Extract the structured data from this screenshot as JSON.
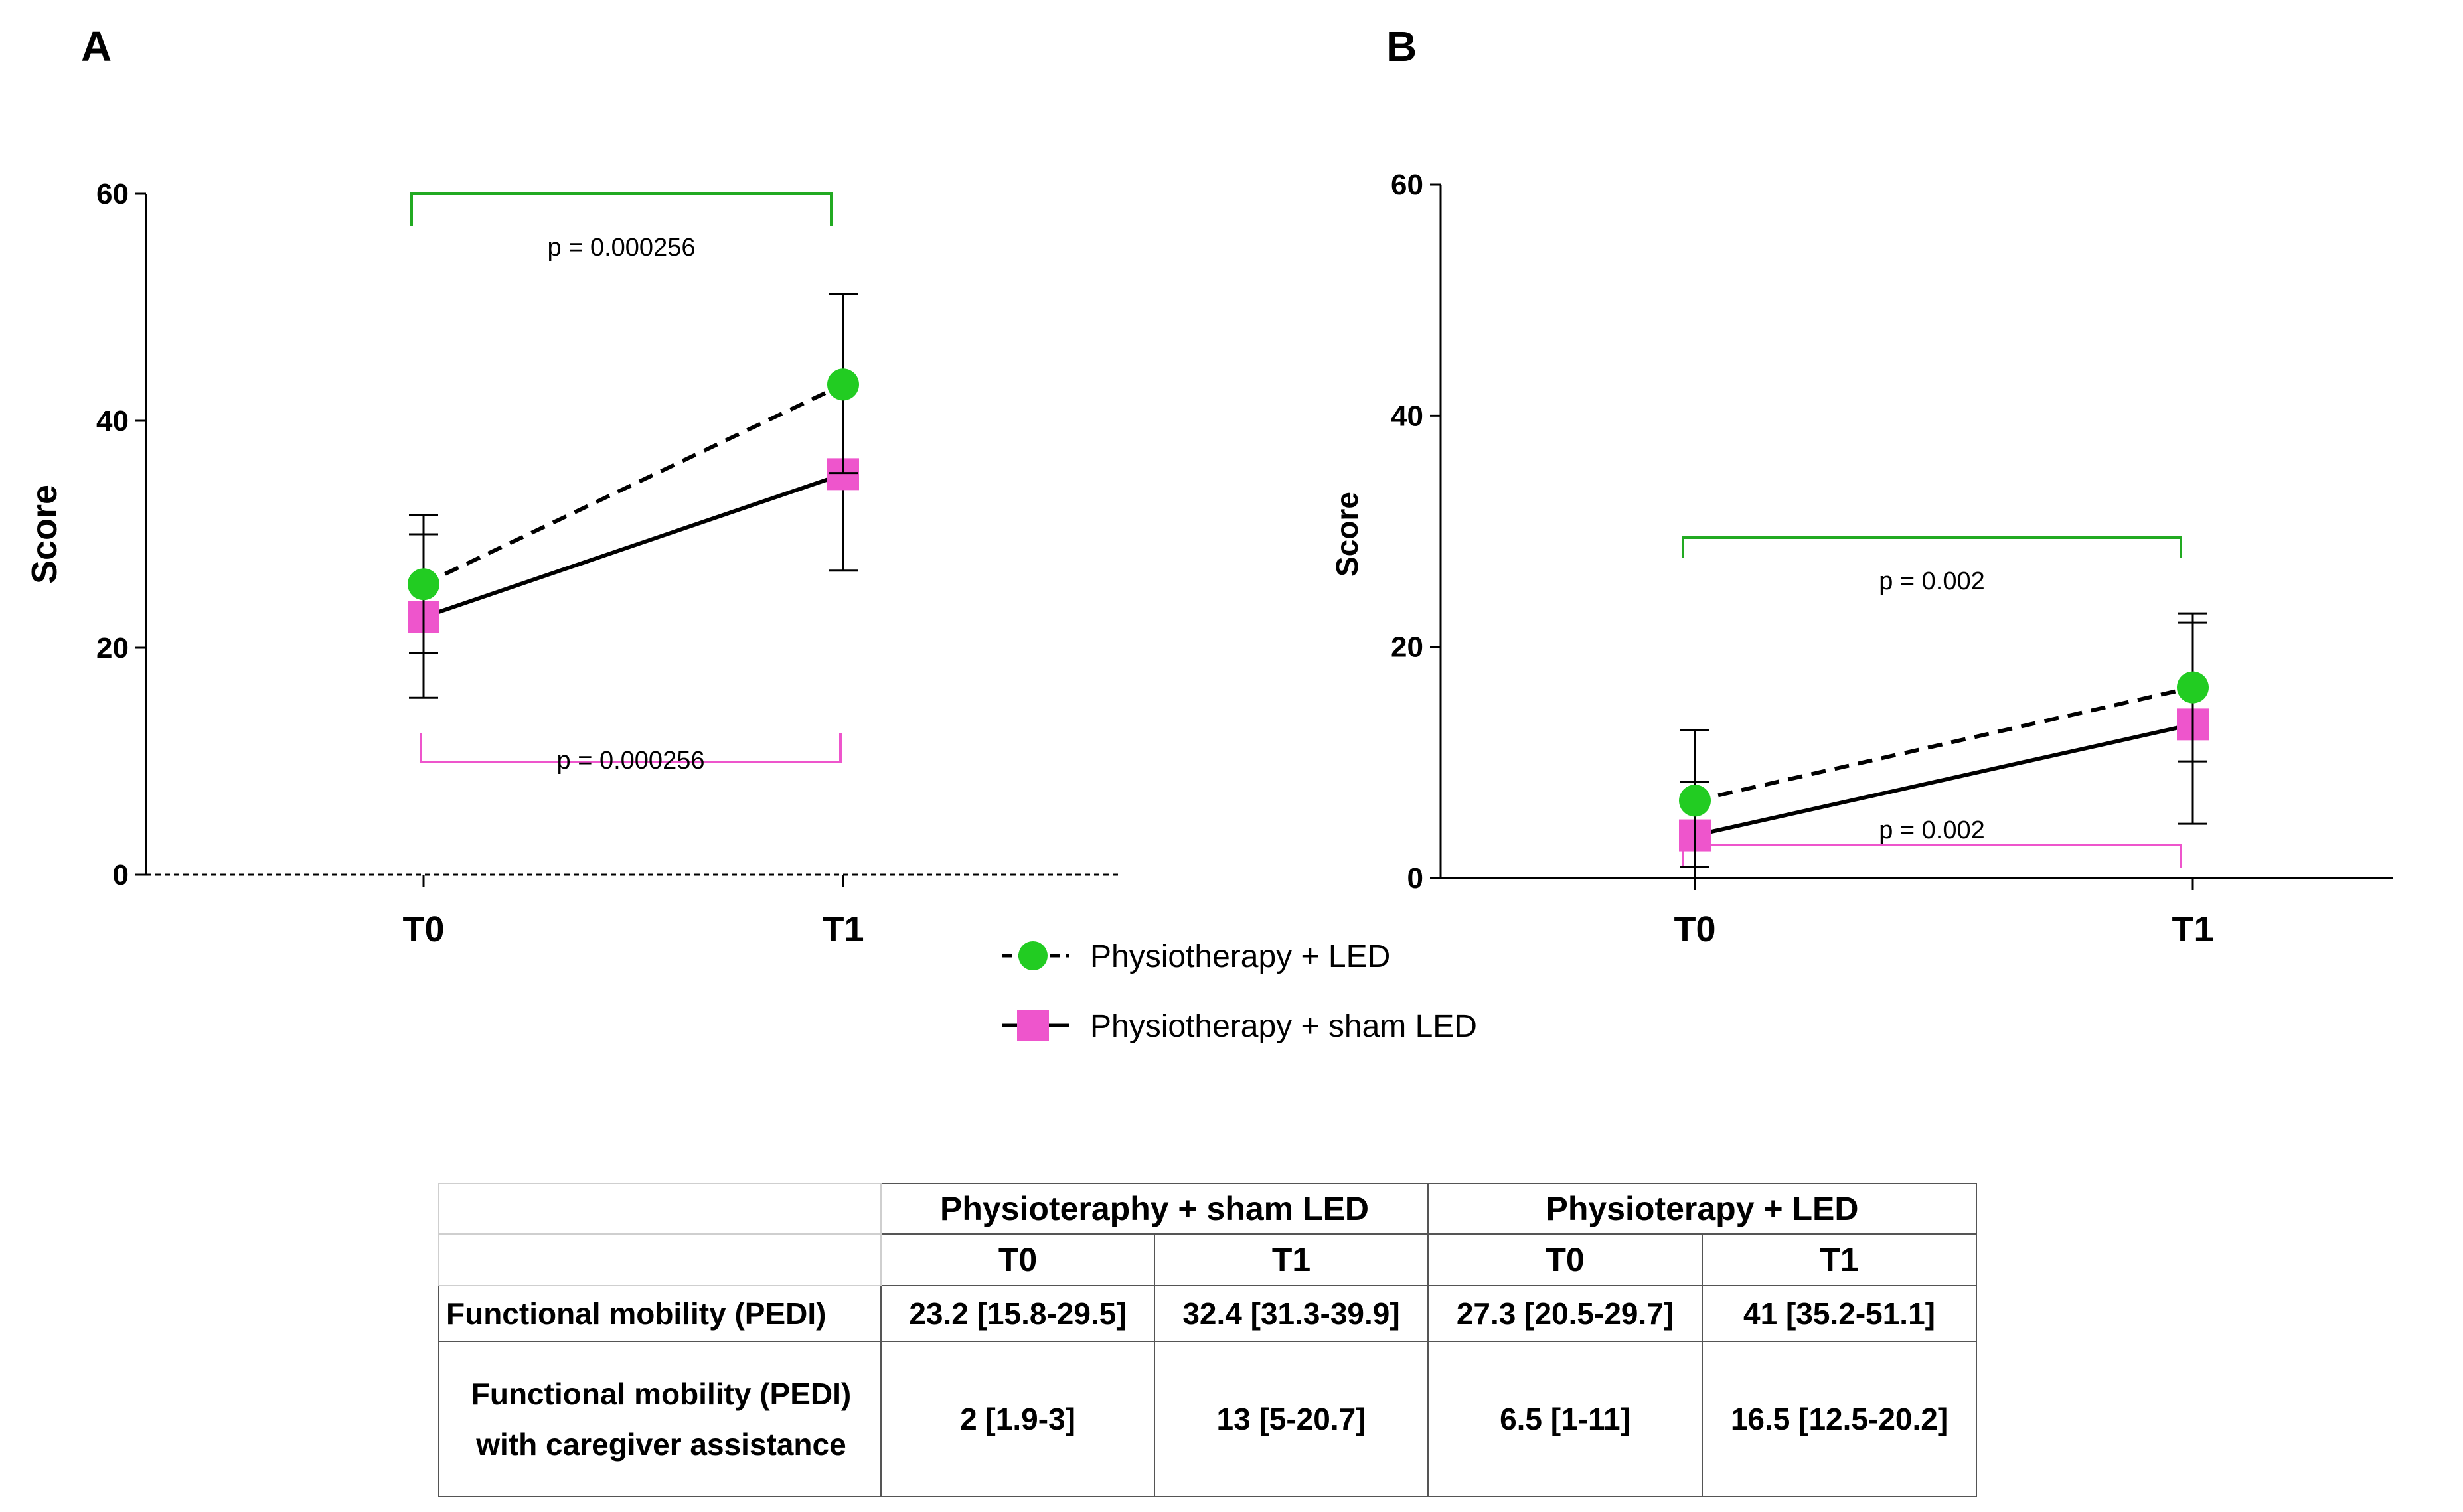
{
  "panel_labels": [
    "A",
    "B"
  ],
  "legend": {
    "items": [
      {
        "label": "Physiotherapy + LED",
        "color": "#22cc22",
        "marker": "circle",
        "line": "dashed"
      },
      {
        "label": "Physiotherapy + sham LED",
        "color": "#ee55cc",
        "marker": "square",
        "line": "solid"
      }
    ]
  },
  "chart_data": [
    {
      "panel": "A",
      "type": "line",
      "ylabel": "Score",
      "xlabel": "",
      "categories": [
        "T0",
        "T1"
      ],
      "ylim": [
        0,
        60
      ],
      "yticks": [
        0,
        20,
        40,
        60
      ],
      "series": [
        {
          "name": "Physiotherapy + LED",
          "values": [
            25.6,
            43.2
          ],
          "err_low": [
            19.5,
            35.4
          ],
          "err_high": [
            31.7,
            51.2
          ],
          "color": "#22cc22",
          "marker": "circle",
          "dash": true
        },
        {
          "name": "Physiotherapy + sham LED",
          "values": [
            22.7,
            35.3
          ],
          "err_low": [
            15.6,
            26.8
          ],
          "err_high": [
            30.0,
            43.2
          ],
          "color": "#ee55cc",
          "marker": "square",
          "dash": false
        }
      ],
      "annotations": [
        {
          "text": "p = 0.000256",
          "series": "Physiotherapy + LED",
          "color": "#22aa22",
          "position": "above"
        },
        {
          "text": "p = 0.000256",
          "series": "Physiotherapy + sham LED",
          "color": "#ee55cc",
          "position": "below"
        }
      ]
    },
    {
      "panel": "B",
      "type": "line",
      "ylabel": "Score",
      "xlabel": "",
      "categories": [
        "T0",
        "T1"
      ],
      "ylim": [
        0,
        60
      ],
      "yticks": [
        0,
        20,
        40,
        60
      ],
      "series": [
        {
          "name": "Physiotherapy + LED",
          "values": [
            6.7,
            16.5
          ],
          "err_low": [
            1.0,
            10.1
          ],
          "err_high": [
            12.8,
            22.9
          ],
          "color": "#22cc22",
          "marker": "circle",
          "dash": true
        },
        {
          "name": "Physiotherapy + sham LED",
          "values": [
            3.7,
            13.3
          ],
          "err_low": [
            0.0,
            4.7
          ],
          "err_high": [
            8.3,
            22.1
          ],
          "color": "#ee55cc",
          "marker": "square",
          "dash": false
        }
      ],
      "annotations": [
        {
          "text": "p = 0.002",
          "series": "Physiotherapy + LED",
          "color": "#22aa22",
          "position": "above"
        },
        {
          "text": "p = 0.002",
          "series": "Physiotherapy + sham LED",
          "color": "#ee55cc",
          "position": "below"
        }
      ]
    }
  ],
  "table": {
    "groups": [
      "Physioteraphy + sham LED",
      "Physioterapy + LED"
    ],
    "timepoints": [
      "T0",
      "T1",
      "T0",
      "T1"
    ],
    "rows": [
      {
        "label": "Functional mobility (PEDI)",
        "values": [
          "23.2 [15.8-29.5]",
          "32.4 [31.3-39.9]",
          "27.3 [20.5-29.7]",
          "41 [35.2-51.1]"
        ]
      },
      {
        "label_line1": "Functional mobility (PEDI)",
        "label_line2": "with caregiver assistance",
        "values": [
          "2 [1.9-3]",
          "13 [5-20.7]",
          "6.5 [1-11]",
          "16.5 [12.5-20.2]"
        ]
      }
    ]
  }
}
